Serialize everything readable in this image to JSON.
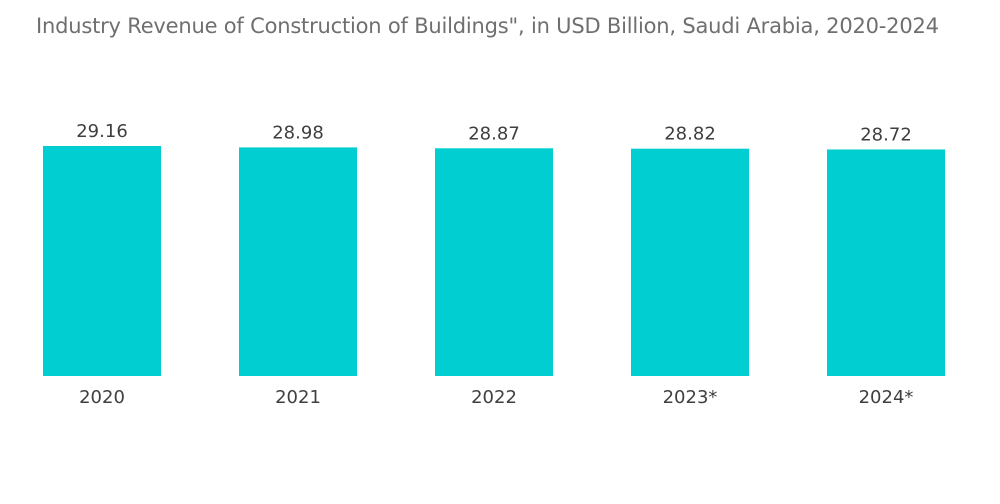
{
  "chart_data": {
    "type": "bar",
    "title": "Industry Revenue of Construction of Buildings\", in USD Billion, Saudi Arabia, 2020-2024",
    "categories": [
      "2020",
      "2021",
      "2022",
      "2023*",
      "2024*"
    ],
    "values": [
      29.16,
      28.98,
      28.87,
      28.82,
      28.72
    ],
    "value_labels": [
      "29.16",
      "28.98",
      "28.87",
      "28.82",
      "28.72"
    ],
    "xlabel": "",
    "ylabel": "",
    "ylim": [
      0,
      29.16
    ],
    "grid": false,
    "legend": "none",
    "bar_color": "#00CED1"
  }
}
